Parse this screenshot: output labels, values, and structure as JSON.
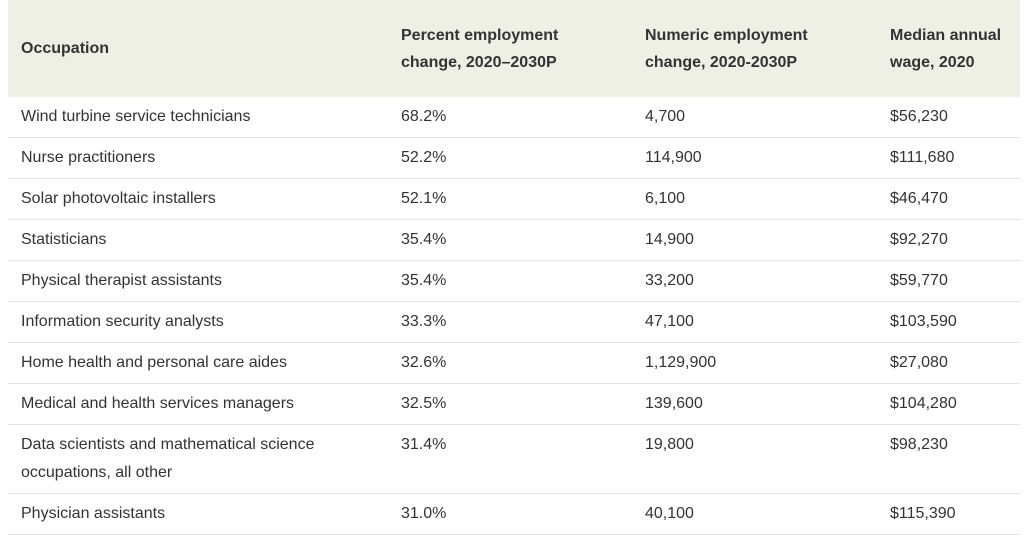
{
  "table": {
    "header": [
      "Occupation",
      "Percent employment change, 2020–2030P",
      "Numeric employment change, 2020-2030P",
      "Median annual wage, 2020"
    ],
    "rows": [
      [
        "Wind turbine service technicians",
        "68.2%",
        "4,700",
        "$56,230"
      ],
      [
        "Nurse practitioners",
        "52.2%",
        "114,900",
        "$111,680"
      ],
      [
        "Solar photovoltaic installers",
        "52.1%",
        "6,100",
        "$46,470"
      ],
      [
        "Statisticians",
        "35.4%",
        "14,900",
        "$92,270"
      ],
      [
        "Physical therapist assistants",
        "35.4%",
        "33,200",
        "$59,770"
      ],
      [
        "Information security analysts",
        "33.3%",
        "47,100",
        "$103,590"
      ],
      [
        "Home health and personal care aides",
        "32.6%",
        "1,129,900",
        "$27,080"
      ],
      [
        "Medical and health services managers",
        "32.5%",
        "139,600",
        "$104,280"
      ],
      [
        "Data scientists and mathematical science occupations, all other",
        "31.4%",
        "19,800",
        "$98,230"
      ],
      [
        "Physician assistants",
        "31.0%",
        "40,100",
        "$115,390"
      ]
    ]
  }
}
